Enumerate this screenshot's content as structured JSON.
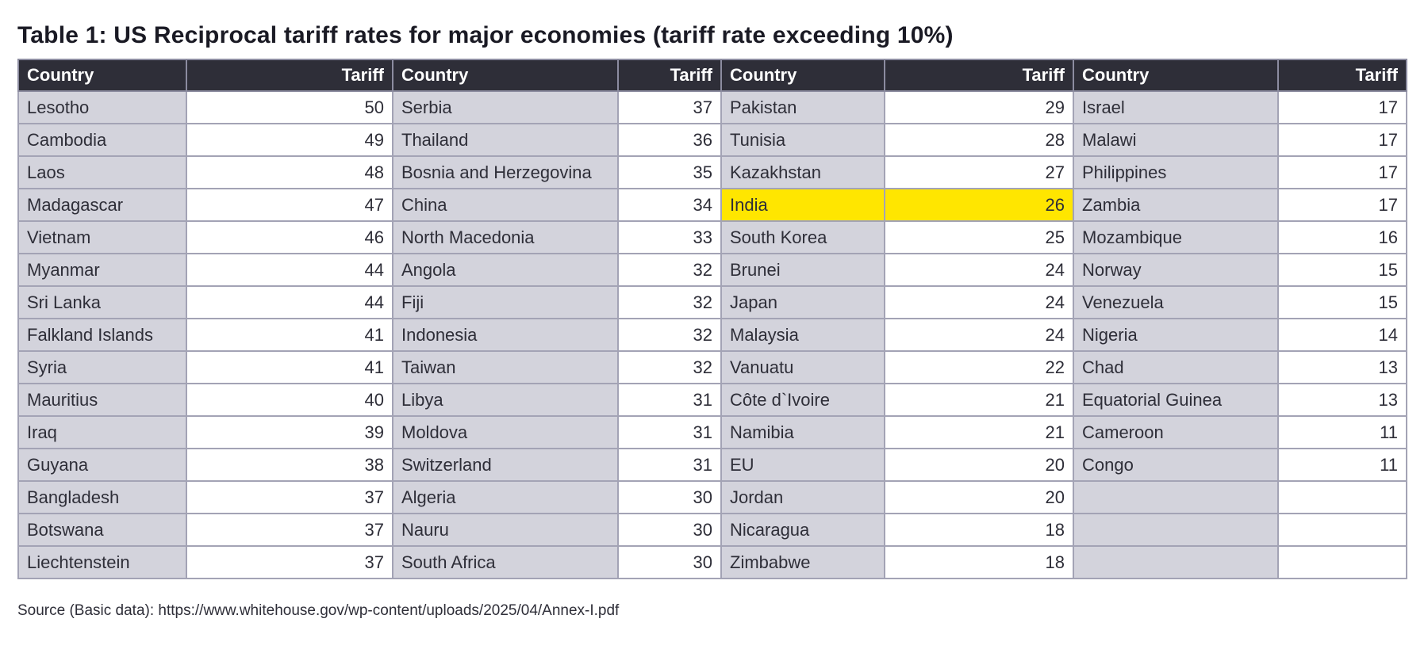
{
  "title": "Table 1: US Reciprocal tariff rates for major economies (tariff rate exceeding 10%)",
  "headers": {
    "country": "Country",
    "tariff": "Tariff"
  },
  "highlight_color": "#ffe600",
  "highlighted_country": "India",
  "groups": [
    [
      [
        "Lesotho",
        "50"
      ],
      [
        "Cambodia",
        "49"
      ],
      [
        "Laos",
        "48"
      ],
      [
        "Madagascar",
        "47"
      ],
      [
        "Vietnam",
        "46"
      ],
      [
        "Myanmar",
        "44"
      ],
      [
        "Sri Lanka",
        "44"
      ],
      [
        "Falkland Islands",
        "41"
      ],
      [
        "Syria",
        "41"
      ],
      [
        "Mauritius",
        "40"
      ],
      [
        "Iraq",
        "39"
      ],
      [
        "Guyana",
        "38"
      ],
      [
        "Bangladesh",
        "37"
      ],
      [
        "Botswana",
        "37"
      ],
      [
        "Liechtenstein",
        "37"
      ]
    ],
    [
      [
        "Serbia",
        "37"
      ],
      [
        "Thailand",
        "36"
      ],
      [
        "Bosnia and Herzegovina",
        "35"
      ],
      [
        "China",
        "34"
      ],
      [
        "North Macedonia",
        "33"
      ],
      [
        "Angola",
        "32"
      ],
      [
        "Fiji",
        "32"
      ],
      [
        "Indonesia",
        "32"
      ],
      [
        "Taiwan",
        "32"
      ],
      [
        "Libya",
        "31"
      ],
      [
        "Moldova",
        "31"
      ],
      [
        "Switzerland",
        "31"
      ],
      [
        "Algeria",
        "30"
      ],
      [
        "Nauru",
        "30"
      ],
      [
        "South Africa",
        "30"
      ]
    ],
    [
      [
        "Pakistan",
        "29"
      ],
      [
        "Tunisia",
        "28"
      ],
      [
        "Kazakhstan",
        "27"
      ],
      [
        "India",
        "26"
      ],
      [
        "South Korea",
        "25"
      ],
      [
        "Brunei",
        "24"
      ],
      [
        "Japan",
        "24"
      ],
      [
        "Malaysia",
        "24"
      ],
      [
        "Vanuatu",
        "22"
      ],
      [
        "Côte d`Ivoire",
        "21"
      ],
      [
        "Namibia",
        "21"
      ],
      [
        "EU",
        "20"
      ],
      [
        "Jordan",
        "20"
      ],
      [
        "Nicaragua",
        "18"
      ],
      [
        "Zimbabwe",
        "18"
      ]
    ],
    [
      [
        "Israel",
        "17"
      ],
      [
        "Malawi",
        "17"
      ],
      [
        "Philippines",
        "17"
      ],
      [
        "Zambia",
        "17"
      ],
      [
        "Mozambique",
        "16"
      ],
      [
        "Norway",
        "15"
      ],
      [
        "Venezuela",
        "15"
      ],
      [
        "Nigeria",
        "14"
      ],
      [
        "Chad",
        "13"
      ],
      [
        "Equatorial Guinea",
        "13"
      ],
      [
        "Cameroon",
        "11"
      ],
      [
        "Congo",
        "11"
      ]
    ]
  ],
  "source": "Source (Basic data): https://www.whitehouse.gov/wp-content/uploads/2025/04/Annex-I.pdf"
}
